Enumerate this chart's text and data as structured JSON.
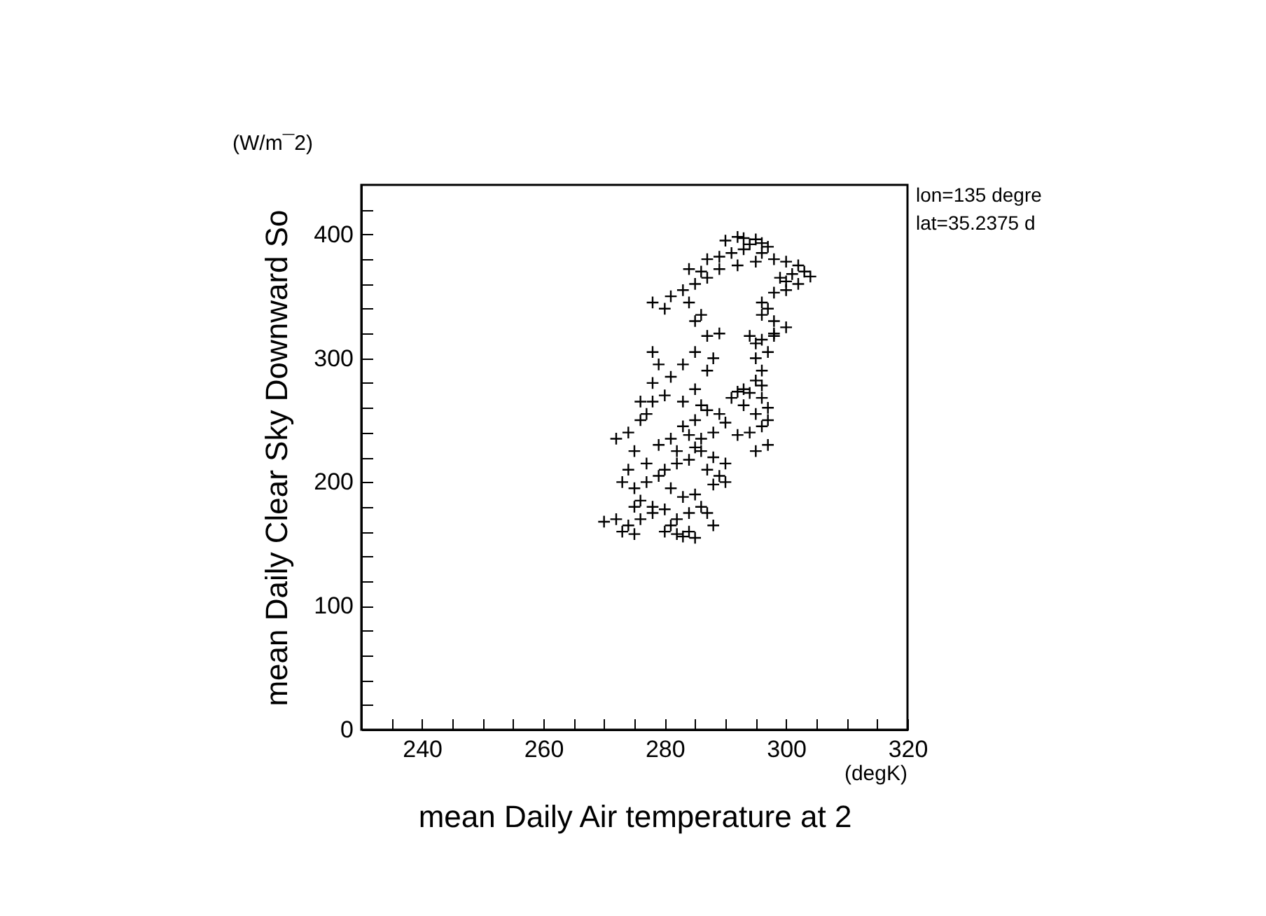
{
  "chart_data": {
    "type": "scatter",
    "xlabel": "mean Daily Air temperature at 2",
    "ylabel": "mean Daily Clear Sky Downward So",
    "annotations": [
      "(W/m¯2)",
      "(degK)",
      "lon=135 degre",
      "lat=35.2375 d"
    ],
    "marker": "cross",
    "grid": false,
    "xlim": [
      230,
      320
    ],
    "xticks": [
      {
        "value": 235,
        "label": null
      },
      240,
      {
        "value": 245,
        "label": null
      },
      {
        "value": 250,
        "label": null
      },
      {
        "value": 255,
        "label": null
      },
      260,
      {
        "value": 265,
        "label": null
      },
      {
        "value": 270,
        "label": null
      },
      {
        "value": 275,
        "label": null
      },
      280,
      {
        "value": 285,
        "label": null
      },
      {
        "value": 290,
        "label": null
      },
      {
        "value": 295,
        "label": null
      },
      300,
      {
        "value": 305,
        "label": null
      },
      {
        "value": 310,
        "label": null
      },
      {
        "value": 315,
        "label": null
      },
      320
    ],
    "ylim": [
      0,
      440
    ],
    "yticks": [
      0,
      {
        "value": 20,
        "label": null
      },
      {
        "value": 40,
        "label": null
      },
      {
        "value": 60,
        "label": null
      },
      {
        "value": 80,
        "label": null
      },
      100,
      {
        "value": 120,
        "label": null
      },
      {
        "value": 140,
        "label": null
      },
      {
        "value": 160,
        "label": null
      },
      {
        "value": 180,
        "label": null
      },
      200,
      {
        "value": 220,
        "label": null
      },
      {
        "value": 240,
        "label": null
      },
      {
        "value": 260,
        "label": null
      },
      {
        "value": 280,
        "label": null
      },
      300,
      {
        "value": 320,
        "label": null
      },
      {
        "value": 340,
        "label": null
      },
      {
        "value": 360,
        "label": null
      },
      {
        "value": 380,
        "label": null
      },
      400,
      {
        "value": 420,
        "label": null
      }
    ],
    "series": [
      {
        "color": "#000000",
        "x": [
          290,
          292,
          293,
          294,
          295,
          296,
          297,
          293,
          291,
          289,
          287,
          296,
          298,
          300,
          302,
          303,
          304,
          301,
          300,
          299,
          302,
          300,
          298,
          295,
          292,
          289,
          286,
          284,
          287,
          285,
          283,
          296,
          297,
          296,
          298,
          300,
          298,
          296,
          295,
          297,
          295,
          296,
          295,
          296,
          294,
          296,
          297,
          295,
          297,
          296,
          294,
          292,
          297,
          295,
          298,
          294,
          270,
          272,
          273,
          274,
          275,
          276,
          278,
          280,
          281,
          282,
          283,
          284,
          285,
          282,
          280,
          278,
          276,
          275,
          277,
          279,
          281,
          283,
          285,
          286,
          287,
          284,
          288,
          280,
          282,
          284,
          286,
          288,
          287,
          289,
          290,
          288,
          290,
          286,
          284,
          281,
          283,
          285,
          287,
          289,
          286,
          283,
          280,
          278,
          277,
          276,
          274,
          272,
          275,
          277,
          274,
          273,
          275,
          279,
          282,
          285,
          288,
          290,
          291,
          293,
          292,
          293,
          287,
          288,
          285,
          289,
          287,
          285,
          280,
          278,
          281,
          284,
          286,
          278,
          279,
          281,
          278,
          276,
          285,
          283
        ],
        "values": [
          395,
          398,
          397,
          392,
          396,
          393,
          390,
          388,
          385,
          382,
          380,
          385,
          380,
          378,
          375,
          370,
          366,
          368,
          362,
          365,
          360,
          355,
          353,
          378,
          375,
          372,
          370,
          372,
          365,
          360,
          355,
          345,
          340,
          335,
          330,
          325,
          320,
          315,
          312,
          305,
          300,
          290,
          282,
          278,
          272,
          268,
          260,
          255,
          250,
          245,
          240,
          238,
          230,
          225,
          318,
          318,
          168,
          170,
          160,
          165,
          158,
          170,
          175,
          160,
          165,
          158,
          156,
          160,
          155,
          170,
          178,
          180,
          185,
          195,
          200,
          205,
          195,
          188,
          190,
          180,
          175,
          175,
          165,
          210,
          215,
          218,
          225,
          220,
          210,
          205,
          200,
          198,
          215,
          235,
          238,
          235,
          245,
          250,
          258,
          255,
          262,
          265,
          270,
          265,
          255,
          250,
          240,
          235,
          225,
          215,
          210,
          200,
          180,
          230,
          225,
          228,
          240,
          248,
          268,
          262,
          273,
          275,
          290,
          300,
          305,
          320,
          318,
          330,
          340,
          345,
          350,
          345,
          335,
          305,
          295,
          285,
          280,
          265,
          275,
          295
        ]
      }
    ]
  }
}
